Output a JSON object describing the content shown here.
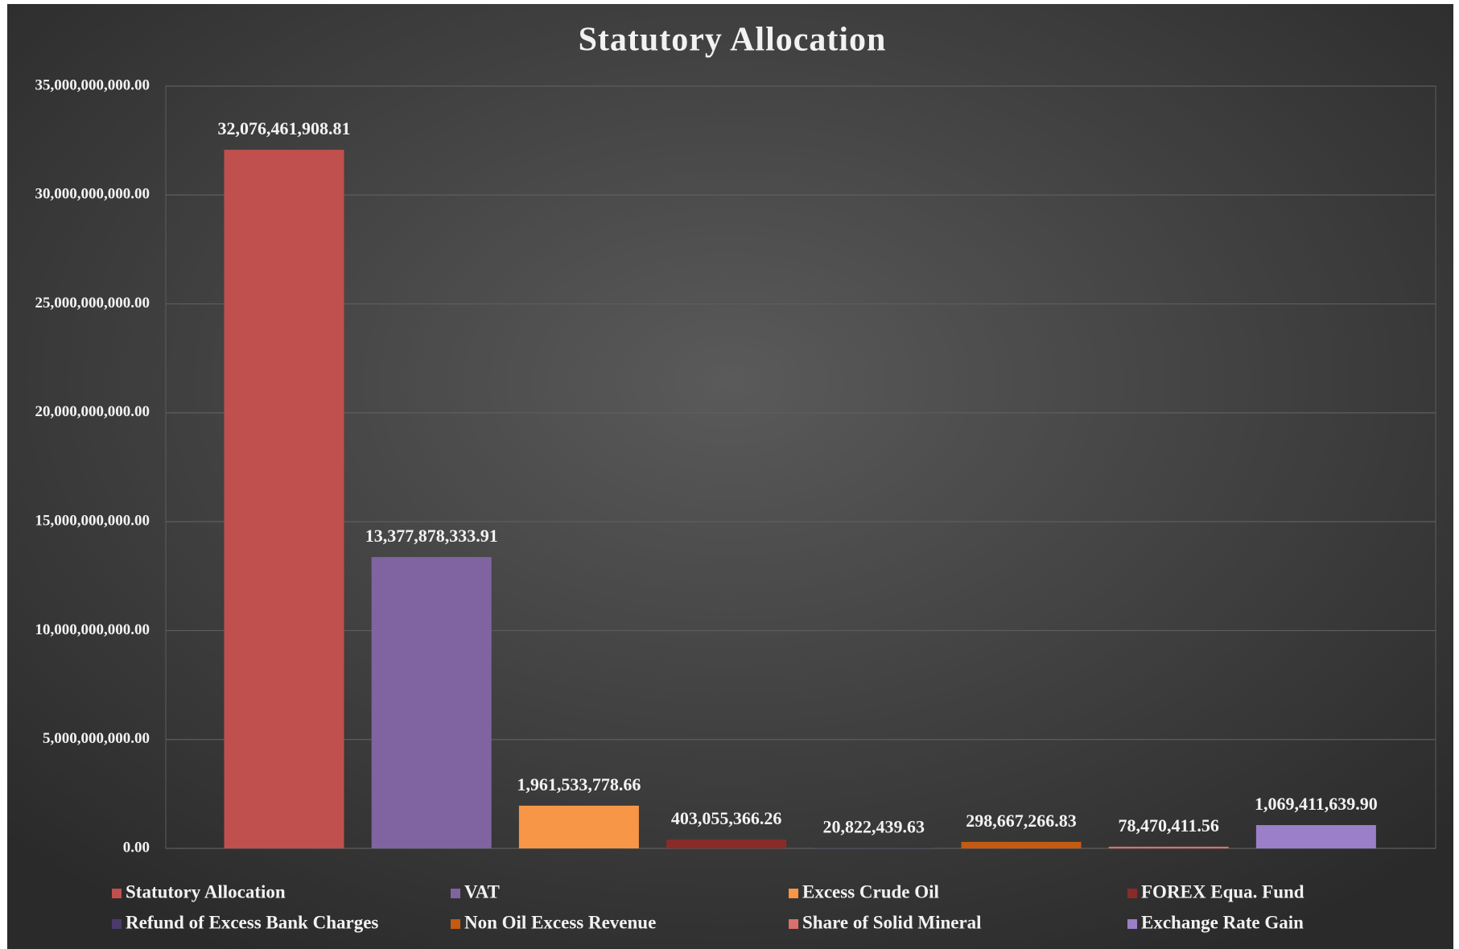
{
  "chart_data": {
    "type": "bar",
    "title": "Statutory Allocation",
    "categories": [
      "Statutory  Allocation",
      "VAT",
      "Excess Crude  Oil",
      "FOREX  Equa. Fund",
      "Refund of Excess  Bank Charges",
      "Non Oil  Excess Revenue",
      "Share of Solid  Mineral",
      "Exchange Rate Gain"
    ],
    "values": [
      32076461908.81,
      13377878333.91,
      1961533778.66,
      403055366.26,
      20822439.63,
      298667266.83,
      78470411.56,
      1069411639.9
    ],
    "value_labels": [
      "32,076,461,908.81",
      "13,377,878,333.91",
      "1,961,533,778.66",
      "403,055,366.26",
      "20,822,439.63",
      "298,667,266.83",
      "78,470,411.56",
      "1,069,411,639.90"
    ],
    "colors": [
      "#c0504d",
      "#8064a2",
      "#f79646",
      "#8b2b28",
      "#4b3a6b",
      "#c55a11",
      "#d9706b",
      "#9b7fc9"
    ],
    "ylim": [
      0,
      35000000000
    ],
    "yticks": [
      {
        "value": 0,
        "label": "0.00"
      },
      {
        "value": 5000000000,
        "label": "5,000,000,000.00"
      },
      {
        "value": 10000000000,
        "label": "10,000,000,000.00"
      },
      {
        "value": 15000000000,
        "label": "15,000,000,000.00"
      },
      {
        "value": 20000000000,
        "label": "20,000,000,000.00"
      },
      {
        "value": 25000000000,
        "label": "25,000,000,000.00"
      },
      {
        "value": 30000000000,
        "label": "30,000,000,000.00"
      },
      {
        "value": 35000000000,
        "label": "35,000,000,000.00"
      }
    ],
    "grid": true,
    "legend": "bottom"
  }
}
